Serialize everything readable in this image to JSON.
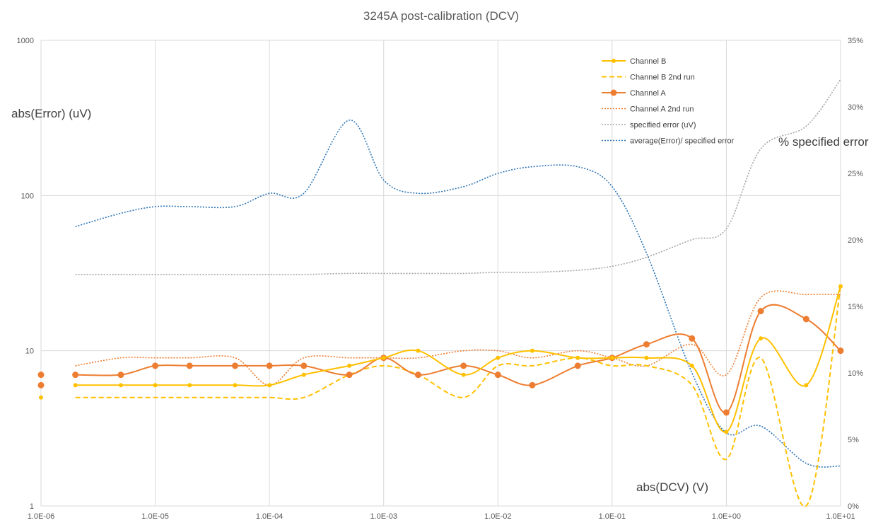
{
  "chart_data": {
    "type": "line",
    "title": "3245A post-calibration (DCV)",
    "xlabel": "abs(DCV) (V)",
    "ylabel": "abs(Error) (uV)",
    "y2label": "% specified error",
    "x_scale": "log",
    "y_scale": "log",
    "xlim": [
      1e-06,
      10
    ],
    "ylim": [
      1,
      1000
    ],
    "y2lim": [
      0,
      35
    ],
    "grid": true,
    "legend_position": "top-right",
    "x_ticks": [
      "1.0E-06",
      "1.0E-05",
      "1.0E-04",
      "1.0E-03",
      "1.0E-02",
      "1.0E-01",
      "1.0E+00",
      "1.0E+01"
    ],
    "y_ticks": [
      "1",
      "10",
      "100",
      "1000"
    ],
    "y2_ticks": [
      "0%",
      "5%",
      "10%",
      "15%",
      "20%",
      "25%",
      "30%",
      "35%"
    ],
    "x": [
      2e-06,
      5e-06,
      1e-05,
      2e-05,
      5e-05,
      0.0001,
      0.0002,
      0.0005,
      0.001,
      0.002,
      0.005,
      0.01,
      0.02,
      0.05,
      0.1,
      0.2,
      0.5,
      1,
      2,
      5,
      10
    ],
    "series": [
      {
        "name": "Channel B",
        "color": "#FFC000",
        "style": "solid",
        "marker": "small",
        "axis": "left",
        "values": [
          6,
          6,
          6,
          6,
          6,
          6,
          7,
          8,
          9,
          10,
          7,
          9,
          10,
          9,
          9,
          9,
          8,
          3,
          12,
          6,
          26
        ]
      },
      {
        "name": "Channel B 2nd run",
        "color": "#FFC000",
        "style": "dashed",
        "marker": "none",
        "axis": "left",
        "values": [
          5,
          5,
          5,
          5,
          5,
          5,
          5,
          7,
          8,
          7,
          5,
          8,
          8,
          9,
          8,
          8,
          6,
          2,
          9,
          1,
          26
        ]
      },
      {
        "name": "Channel A",
        "color": "#ED7D31",
        "style": "solid",
        "marker": "large",
        "axis": "left",
        "values": [
          7,
          7,
          8,
          8,
          8,
          8,
          8,
          7,
          9,
          7,
          8,
          7,
          6,
          8,
          9,
          11,
          12,
          4,
          18,
          16,
          10
        ]
      },
      {
        "name": "Channel A 2nd run",
        "color": "#ED7D31",
        "style": "dotted",
        "marker": "none",
        "axis": "left",
        "values": [
          8,
          9,
          9,
          9,
          9,
          6,
          9,
          9,
          9,
          9,
          10,
          10,
          9,
          10,
          9,
          8,
          11,
          7,
          22,
          23,
          23
        ]
      },
      {
        "name": "specified error (uV)",
        "color": "#A5A5A5",
        "style": "dotted",
        "marker": "none",
        "axis": "left",
        "values": [
          31,
          31,
          31,
          31,
          31,
          31,
          31,
          31.5,
          31.5,
          31.5,
          31.5,
          32,
          32,
          33,
          35,
          40,
          52,
          61,
          200,
          280,
          560
        ]
      },
      {
        "name": "average(Error)/ specified error",
        "color": "#2E75B6",
        "style": "dotted",
        "marker": "none",
        "axis": "right",
        "values": [
          21,
          22,
          22.5,
          22.5,
          22.5,
          23.5,
          23.5,
          29,
          24.5,
          23.5,
          24,
          25,
          25.5,
          25.5,
          24,
          19,
          10,
          5.5,
          6,
          3.2,
          3
        ]
      }
    ],
    "extra_points": {
      "x": 1e-06,
      "series": [
        {
          "name": "Channel B",
          "values": [
            5
          ]
        },
        {
          "name": "Channel A",
          "values": [
            7,
            6
          ]
        }
      ]
    }
  }
}
